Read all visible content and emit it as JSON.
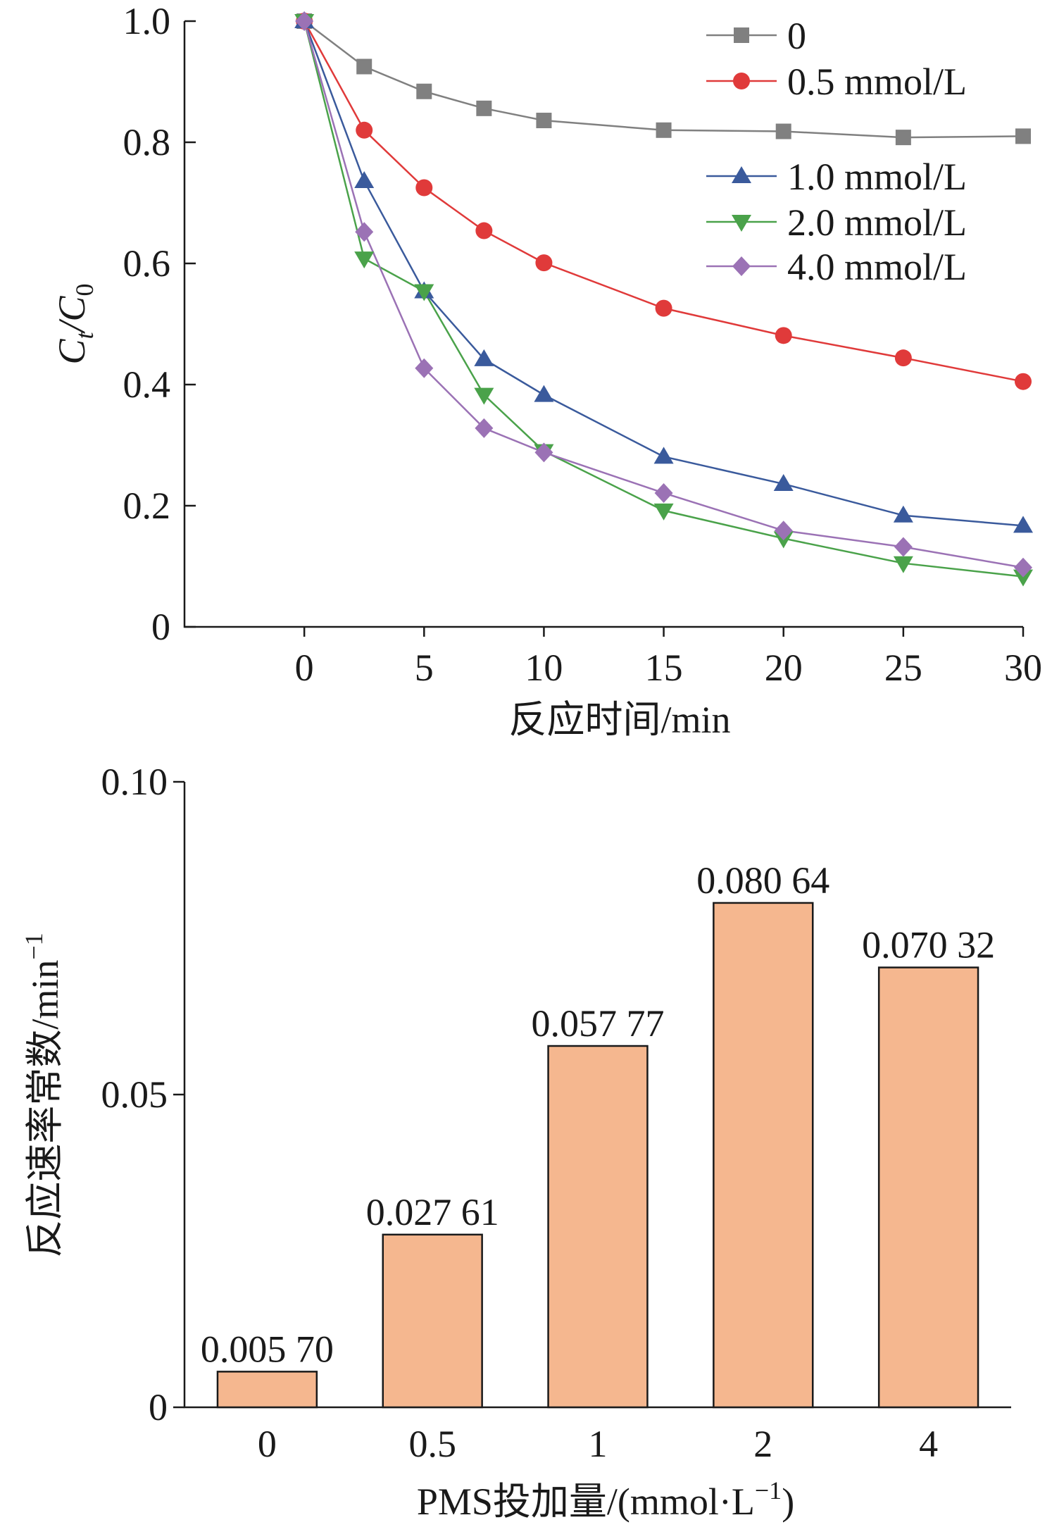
{
  "chart_data": [
    {
      "type": "line",
      "title": "",
      "xlabel": "反应时间/min",
      "ylabel_main": "C",
      "ylabel_sub1": "t",
      "ylabel_mid": "/C",
      "ylabel_sub2": "0",
      "xlim": [
        -5,
        30
      ],
      "ylim": [
        0,
        1.0
      ],
      "xticks": [
        0,
        5,
        10,
        15,
        20,
        25,
        30
      ],
      "xtick_labels": [
        "0",
        "5",
        "10",
        "15",
        "20",
        "25",
        "30"
      ],
      "yticks": [
        0,
        0.2,
        0.4,
        0.6,
        0.8,
        1.0
      ],
      "ytick_labels": [
        "0",
        "0.2",
        "0.4",
        "0.6",
        "0.8",
        "1.0"
      ],
      "grid": false,
      "legend_position": "top-right",
      "x": [
        0,
        2.5,
        5,
        7.5,
        10,
        15,
        20,
        25,
        30
      ],
      "series": [
        {
          "name": "0",
          "color": "#808080",
          "marker": "square",
          "values": [
            1.0,
            0.925,
            0.884,
            0.856,
            0.836,
            0.82,
            0.818,
            0.808,
            0.81
          ]
        },
        {
          "name": "0.5 mmol/L",
          "color": "#e03a3a",
          "marker": "circle",
          "values": [
            1.0,
            0.82,
            0.725,
            0.654,
            0.601,
            0.526,
            0.481,
            0.444,
            0.405
          ]
        },
        {
          "name": "1.0 mmol/L",
          "color": "#3a5a9c",
          "marker": "triangle-up",
          "values": [
            1.0,
            0.736,
            0.554,
            0.442,
            0.383,
            0.281,
            0.236,
            0.184,
            0.167
          ]
        },
        {
          "name": "2.0 mmol/L",
          "color": "#4aa24a",
          "marker": "triangle-down",
          "values": [
            1.0,
            0.608,
            0.554,
            0.383,
            0.29,
            0.192,
            0.146,
            0.105,
            0.083
          ]
        },
        {
          "name": "4.0 mmol/L",
          "color": "#9b72b5",
          "marker": "diamond",
          "values": [
            1.0,
            0.652,
            0.427,
            0.328,
            0.288,
            0.221,
            0.159,
            0.132,
            0.098
          ]
        }
      ]
    },
    {
      "type": "bar",
      "title": "",
      "xlabel": "PMS投加量/(mmol·L",
      "xlabel_sup": "−1",
      "xlabel_tail": ")",
      "ylabel": "反应速率常数/min",
      "ylabel_sup": "−1",
      "ylim": [
        0,
        0.1
      ],
      "yticks": [
        0,
        0.05,
        0.1
      ],
      "ytick_labels": [
        "0",
        "0.05",
        "0.10"
      ],
      "grid": false,
      "bar_color": "#f5b78f",
      "categories": [
        "0",
        "0.5",
        "1",
        "2",
        "4"
      ],
      "values": [
        0.0057,
        0.02761,
        0.05777,
        0.08064,
        0.07032
      ],
      "data_labels": [
        "0.005 70",
        "0.027 61",
        "0.057 77",
        "0.080 64",
        "0.070 32"
      ]
    }
  ]
}
